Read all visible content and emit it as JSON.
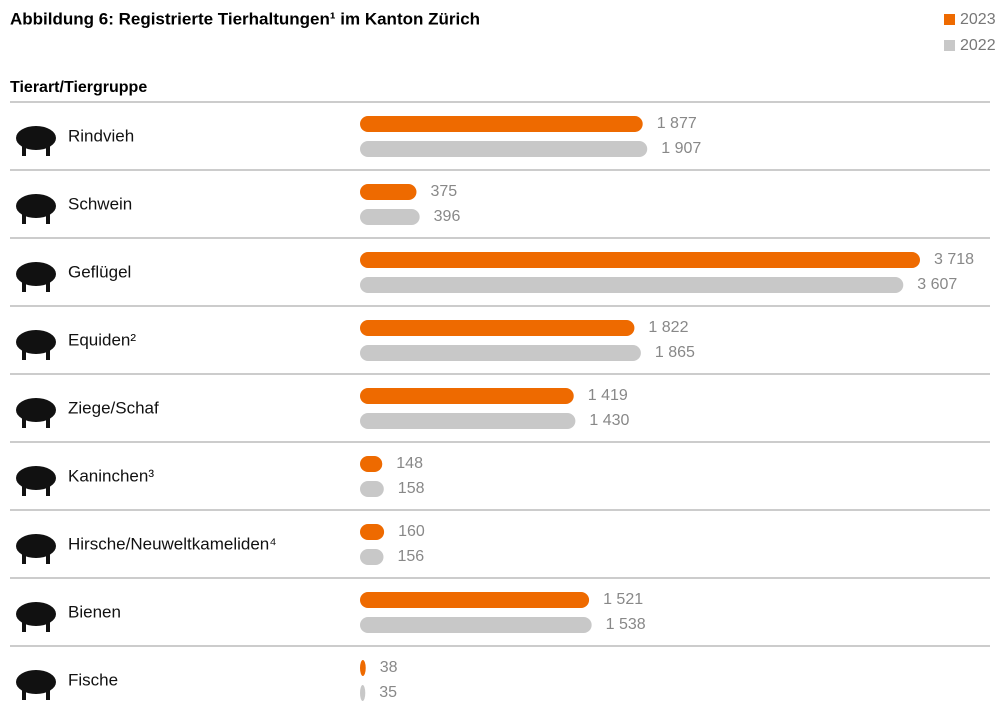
{
  "chart_data": {
    "type": "bar",
    "title": "Abbildung 6: Registrierte Tierhaltungen¹ im Kanton Zürich",
    "y_label": "Tierart/Tiergruppe",
    "categories": [
      "Rindvieh",
      "Schwein",
      "Geflügel",
      "Equiden²",
      "Ziege/Schaf",
      "Kaninchen³",
      "Hirsche/Neuweltkameliden⁴",
      "Bienen",
      "Fische"
    ],
    "series": [
      {
        "name": "2023",
        "color": "#ee6a00",
        "values": [
          1877,
          375,
          3718,
          1822,
          1419,
          148,
          160,
          1521,
          38
        ],
        "value_labels": [
          "1 877",
          "375",
          "3 718",
          "1 822",
          "1 419",
          "148",
          "160",
          "1 521",
          "38"
        ]
      },
      {
        "name": "2022",
        "color": "#c8c8c8",
        "values": [
          1907,
          396,
          3607,
          1865,
          1430,
          158,
          156,
          1538,
          35
        ],
        "value_labels": [
          "1 907",
          "396",
          "3 607",
          "1 865",
          "1 430",
          "158",
          "156",
          "1 538",
          "35"
        ]
      }
    ]
  }
}
